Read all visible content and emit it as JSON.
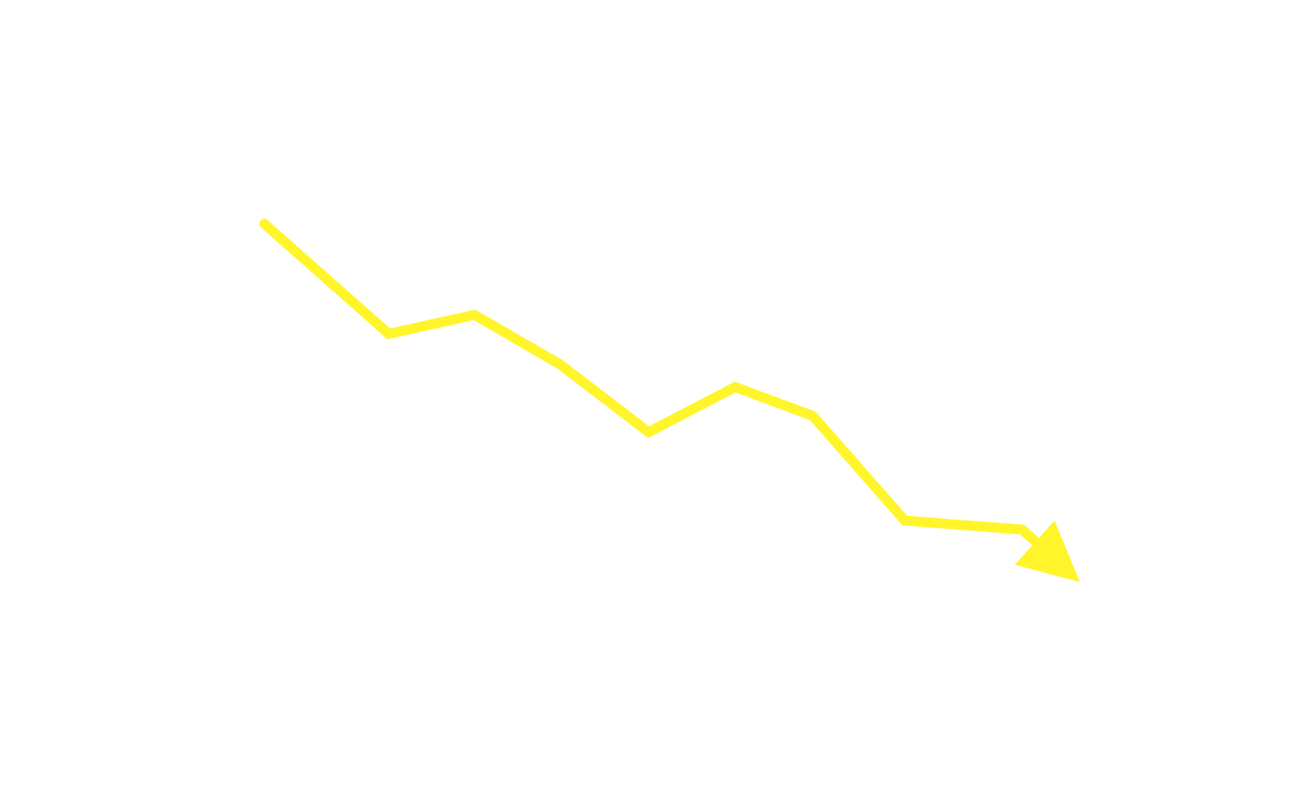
{
  "graphic": {
    "type": "downward-trend-arrow",
    "color": "#FFF52A",
    "background": "#FFFFFF",
    "direction": "down-right"
  }
}
